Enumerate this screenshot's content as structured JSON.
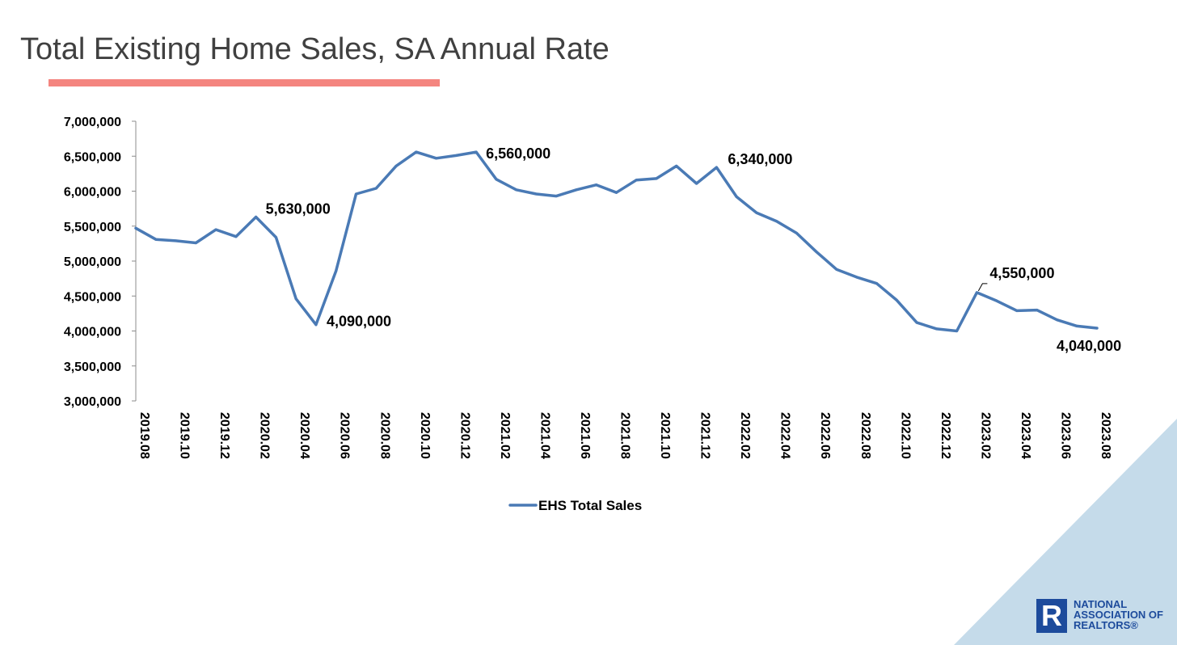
{
  "slide": {
    "title": "Total Existing Home Sales, SA Annual Rate",
    "accent_color": "#f4857f",
    "corner_color": "#c5dbea"
  },
  "logo": {
    "mark_icon": "realtor-r-logo-icon",
    "line1": "NATIONAL",
    "line2": "ASSOCIATION OF",
    "line3": "REALTORS®",
    "color": "#1d4b9c"
  },
  "chart_data": {
    "type": "line",
    "title": "Total Existing Home Sales, SA Annual Rate",
    "xlabel": "",
    "ylabel": "",
    "ylim": [
      3000000,
      7000000
    ],
    "yticks": [
      3000000,
      3500000,
      4000000,
      4500000,
      5000000,
      5500000,
      6000000,
      6500000,
      7000000
    ],
    "ytick_labels": [
      "3,000,000",
      "3,500,000",
      "4,000,000",
      "4,500,000",
      "5,000,000",
      "5,500,000",
      "6,000,000",
      "6,500,000",
      "7,000,000"
    ],
    "x": [
      "2019.08",
      "2019.09",
      "2019.10",
      "2019.11",
      "2019.12",
      "2020.01",
      "2020.02",
      "2020.03",
      "2020.04",
      "2020.05",
      "2020.06",
      "2020.07",
      "2020.08",
      "2020.09",
      "2020.10",
      "2020.11",
      "2020.12",
      "2021.01",
      "2021.02",
      "2021.03",
      "2021.04",
      "2021.05",
      "2021.06",
      "2021.07",
      "2021.08",
      "2021.09",
      "2021.10",
      "2021.11",
      "2021.12",
      "2022.01",
      "2022.02",
      "2022.03",
      "2022.04",
      "2022.05",
      "2022.06",
      "2022.07",
      "2022.08",
      "2022.09",
      "2022.10",
      "2022.11",
      "2022.12",
      "2023.01",
      "2023.02",
      "2023.03",
      "2023.04",
      "2023.05",
      "2023.06",
      "2023.07",
      "2023.08"
    ],
    "xtick_labels": [
      "2019.08",
      "2019.10",
      "2019.12",
      "2020.02",
      "2020.04",
      "2020.06",
      "2020.08",
      "2020.10",
      "2020.12",
      "2021.02",
      "2021.04",
      "2021.06",
      "2021.08",
      "2021.10",
      "2021.12",
      "2022.02",
      "2022.04",
      "2022.06",
      "2022.08",
      "2022.10",
      "2022.12",
      "2023.02",
      "2023.04",
      "2023.06",
      "2023.08"
    ],
    "series": [
      {
        "name": "EHS Total Sales",
        "color": "#4a7ab5",
        "values": [
          5470000,
          5310000,
          5290000,
          5260000,
          5450000,
          5350000,
          5630000,
          5340000,
          4460000,
          4090000,
          4860000,
          5960000,
          6040000,
          6360000,
          6560000,
          6470000,
          6510000,
          6560000,
          6170000,
          6020000,
          5960000,
          5930000,
          6020000,
          6090000,
          5980000,
          6160000,
          6180000,
          6360000,
          6110000,
          6340000,
          5920000,
          5690000,
          5570000,
          5400000,
          5130000,
          4880000,
          4770000,
          4680000,
          4440000,
          4120000,
          4030000,
          4000000,
          4550000,
          4430000,
          4290000,
          4300000,
          4160000,
          4070000,
          4040000
        ]
      }
    ],
    "annotations": [
      {
        "x": "2020.02",
        "text": "5,630,000"
      },
      {
        "x": "2020.05",
        "text": "4,090,000"
      },
      {
        "x": "2021.01",
        "text": "6,560,000"
      },
      {
        "x": "2022.01",
        "text": "6,340,000"
      },
      {
        "x": "2023.02",
        "text": "4,550,000"
      },
      {
        "x": "2023.08",
        "text": "4,040,000"
      }
    ],
    "legend": {
      "position": "bottom",
      "entries": [
        "EHS Total Sales"
      ]
    },
    "grid": false
  }
}
